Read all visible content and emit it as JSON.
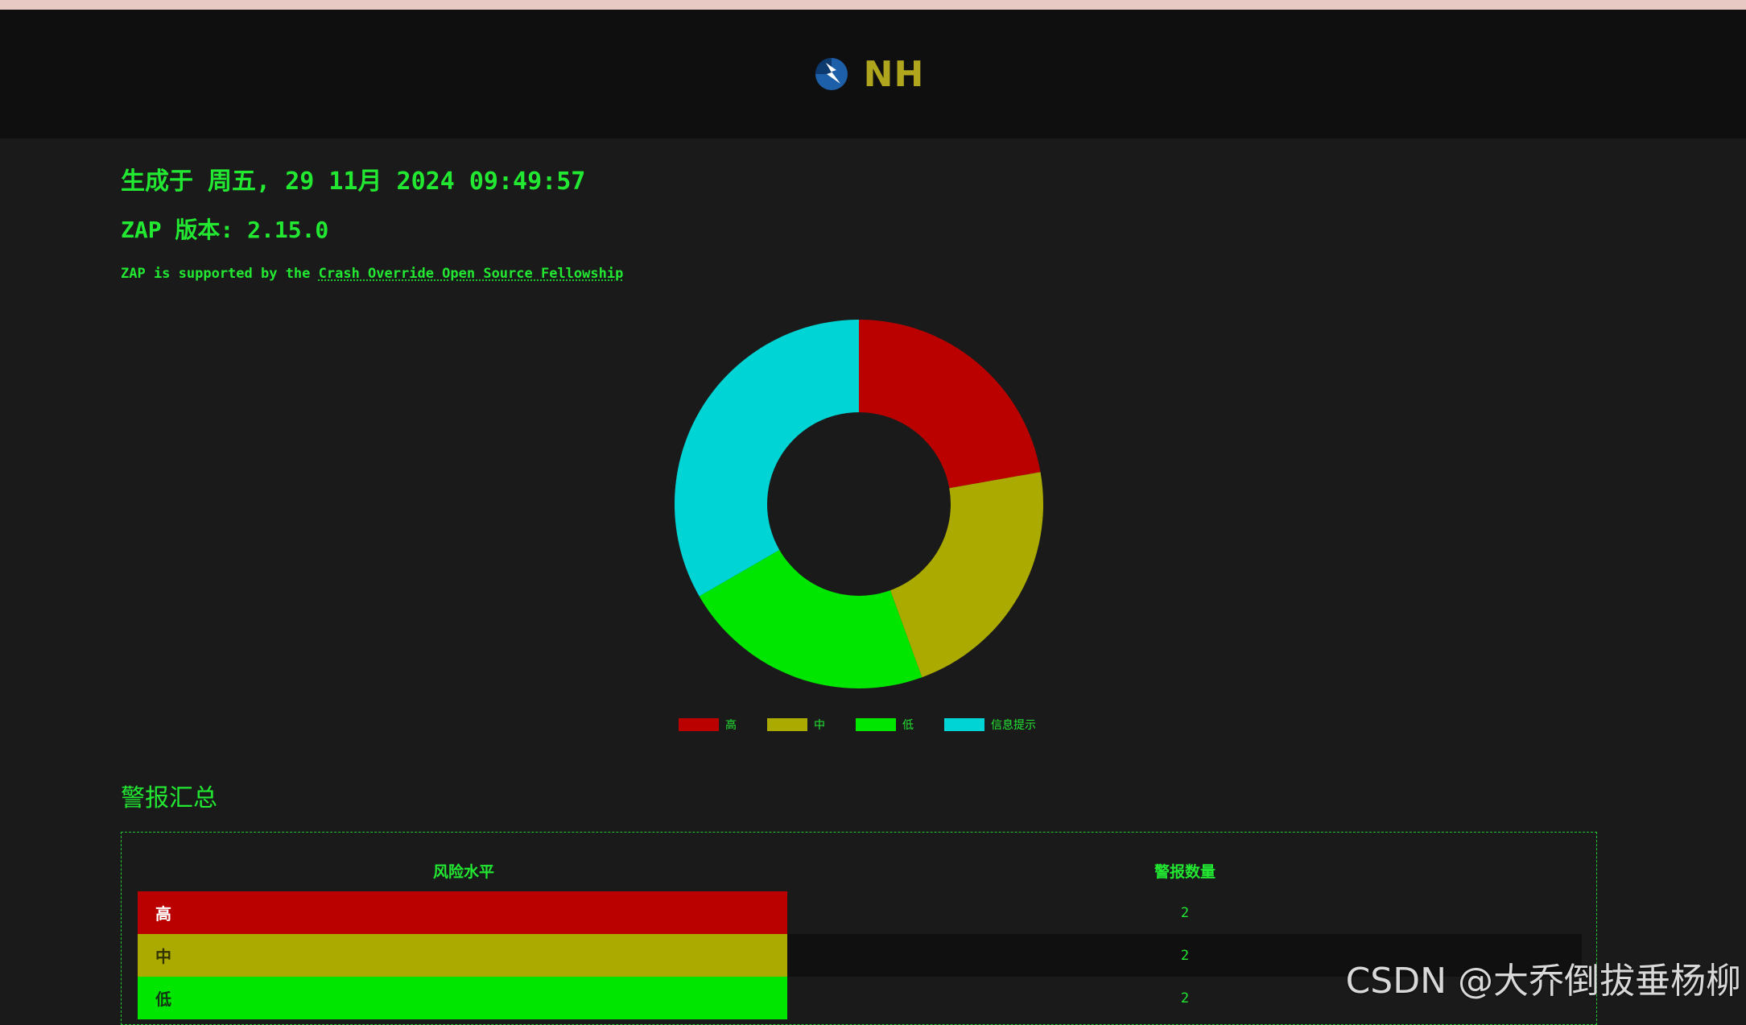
{
  "header": {
    "title": "NH",
    "logo_icon": "zap-lightning-logo"
  },
  "report": {
    "generated": "生成于 周五, 29 11月 2024 09:49:57",
    "version": "ZAP 版本: 2.15.0",
    "support_prefix": "ZAP is supported by the ",
    "support_link": "Crash Override Open Source Fellowship"
  },
  "chart_data": {
    "type": "pie",
    "style": "doughnut",
    "categories": [
      "高",
      "中",
      "低",
      "信息提示"
    ],
    "values": [
      2,
      2,
      2,
      3
    ],
    "colors": [
      "#bb0000",
      "#aaaa00",
      "#00e600",
      "#00d4d4"
    ],
    "legend_position": "bottom"
  },
  "summary": {
    "title": "警报汇总",
    "col_risk": "风险水平",
    "col_count": "警报数量",
    "rows": [
      {
        "risk": "高",
        "count": "2",
        "bg": "#bb0000",
        "fg": "#ffffff"
      },
      {
        "risk": "中",
        "count": "2",
        "bg": "#aaaa00",
        "fg": "#333300"
      },
      {
        "risk": "低",
        "count": "2",
        "bg": "#00e600",
        "fg": "#113311"
      }
    ]
  },
  "watermark": "CSDN @大乔倒拔垂杨柳"
}
